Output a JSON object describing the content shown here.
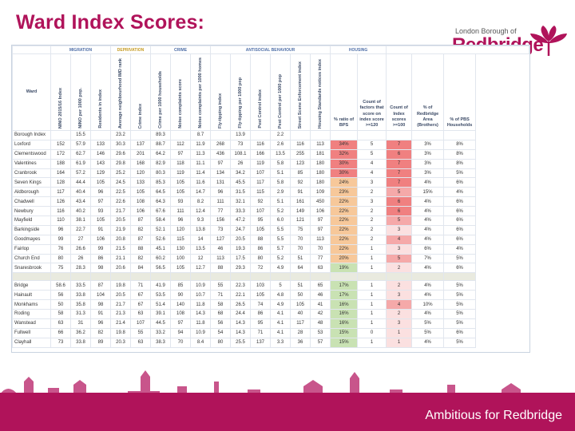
{
  "page": {
    "title": "Ward Index Scores:",
    "tagline": "Ambitious for Redbridge"
  },
  "logo": {
    "line1": "London Borough of",
    "line2": "Redbridge"
  },
  "table": {
    "groups": [
      {
        "label": "MIGRATION",
        "span": 3,
        "color": "#4f6fa8"
      },
      {
        "label": "DEPRIVATION",
        "span": 2,
        "color": "#c59a21"
      },
      {
        "label": "CRIME",
        "span": 3,
        "color": "#4f6fa8"
      },
      {
        "label": "ANTISOCIAL BEHAVIOUR",
        "span": 6,
        "color": "#4f6fa8"
      },
      {
        "label": "HOUSING",
        "span": 2,
        "color": "#4f6fa8"
      },
      {
        "label": "",
        "span": 5,
        "color": "#4f6fa8"
      }
    ],
    "columns": [
      "Ward",
      "NINO 2015/16 Index",
      "NINO per 1000 pop.",
      "Residents in index",
      "Average neighbourhood IMD rank",
      "Crime index",
      "Crime per 1000 households",
      "Noise complaints score",
      "Noise complaints per 1000 homes",
      "Fly-tipping index",
      "Fly-tipping per 1000 pop",
      "Pest Control index",
      "Pest Control per 1000 pop",
      "Street Scene Enforcement index",
      "Housing Standards notices index",
      "% ratio of BPS",
      "Count of factors that score on index score >=120",
      "Count of Index scores >=100",
      "% of Redbridge Area (Brothers)",
      "% of PBS Households"
    ],
    "rows": [
      {
        "ward": "Borough Index",
        "v": [
          "",
          "15.5",
          "",
          "23.2",
          "",
          "89.3",
          "",
          "8.7",
          "",
          "13.9",
          "",
          "2.2",
          "",
          "",
          "",
          "",
          "",
          "",
          ""
        ]
      },
      {
        "ward": "Loxford",
        "v": [
          "152",
          "57.9",
          "133",
          "30.3",
          "137",
          "88.7",
          "112",
          "11.9",
          "268",
          "73",
          "116",
          "2.6",
          "116",
          "113",
          "34%",
          "5",
          "7",
          "3%",
          "8%"
        ]
      },
      {
        "ward": "Clementswood",
        "v": [
          "172",
          "62.7",
          "146",
          "29.6",
          "201",
          "64.2",
          "97",
          "11.3",
          "436",
          "108.1",
          "166",
          "13.5",
          "255",
          "181",
          "32%",
          "5",
          "6",
          "3%",
          "8%"
        ]
      },
      {
        "ward": "Valentines",
        "v": [
          "188",
          "61.9",
          "143",
          "29.8",
          "168",
          "82.9",
          "118",
          "11.1",
          "97",
          "26",
          "119",
          "5.8",
          "123",
          "180",
          "30%",
          "4",
          "7",
          "3%",
          "8%"
        ]
      },
      {
        "ward": "Cranbrook",
        "v": [
          "164",
          "57.2",
          "129",
          "25.2",
          "120",
          "80.3",
          "119",
          "11.4",
          "134",
          "34.2",
          "107",
          "5.1",
          "85",
          "180",
          "30%",
          "4",
          "7",
          "3%",
          "5%"
        ]
      },
      {
        "ward": "Seven Kings",
        "v": [
          "128",
          "44.4",
          "105",
          "24.5",
          "133",
          "85.3",
          "105",
          "11.6",
          "131",
          "45.5",
          "117",
          "5.8",
          "92",
          "180",
          "24%",
          "3",
          "7",
          "4%",
          "6%"
        ]
      },
      {
        "ward": "Aldborough",
        "v": [
          "117",
          "40.4",
          "96",
          "22.5",
          "105",
          "64.5",
          "105",
          "14.7",
          "96",
          "31.5",
          "115",
          "2.9",
          "91",
          "109",
          "23%",
          "2",
          "5",
          "15%",
          "4%"
        ]
      },
      {
        "ward": "Chadwell",
        "v": [
          "126",
          "43.4",
          "97",
          "22.6",
          "108",
          "64.3",
          "93",
          "8.2",
          "111",
          "32.1",
          "92",
          "5.1",
          "161",
          "450",
          "22%",
          "3",
          "6",
          "4%",
          "6%"
        ]
      },
      {
        "ward": "Newbury",
        "v": [
          "116",
          "40.2",
          "93",
          "21.7",
          "106",
          "67.6",
          "111",
          "12.4",
          "77",
          "33.3",
          "107",
          "5.2",
          "149",
          "106",
          "22%",
          "2",
          "6",
          "4%",
          "6%"
        ]
      },
      {
        "ward": "Mayfield",
        "v": [
          "110",
          "38.1",
          "105",
          "20.5",
          "87",
          "58.4",
          "96",
          "9.3",
          "156",
          "47.2",
          "95",
          "6.0",
          "121",
          "97",
          "22%",
          "2",
          "5",
          "4%",
          "6%"
        ]
      },
      {
        "ward": "Barkingside",
        "v": [
          "96",
          "22.7",
          "91",
          "21.9",
          "82",
          "52.1",
          "120",
          "13.8",
          "73",
          "24.7",
          "105",
          "5.5",
          "75",
          "97",
          "22%",
          "2",
          "3",
          "4%",
          "6%"
        ]
      },
      {
        "ward": "Goodmayes",
        "v": [
          "99",
          "27",
          "106",
          "20.8",
          "87",
          "52.6",
          "115",
          "14",
          "127",
          "20.5",
          "88",
          "5.5",
          "70",
          "113",
          "22%",
          "2",
          "4",
          "4%",
          "6%"
        ]
      },
      {
        "ward": "Fairlop",
        "v": [
          "76",
          "26.6",
          "99",
          "21.5",
          "88",
          "45.1",
          "130",
          "13.5",
          "46",
          "19.3",
          "86",
          "5.7",
          "70",
          "70",
          "22%",
          "1",
          "3",
          "6%",
          "4%"
        ]
      },
      {
        "ward": "Church End",
        "v": [
          "80",
          "26",
          "86",
          "21.1",
          "82",
          "60.2",
          "100",
          "12",
          "113",
          "17.5",
          "80",
          "5.2",
          "51",
          "77",
          "20%",
          "1",
          "5",
          "7%",
          "5%"
        ]
      },
      {
        "ward": "Snaresbrook",
        "v": [
          "75",
          "28.3",
          "98",
          "20.6",
          "84",
          "56.5",
          "105",
          "12.7",
          "88",
          "29.3",
          "72",
          "4.9",
          "64",
          "63",
          "19%",
          "1",
          "2",
          "4%",
          "6%"
        ]
      },
      {
        "ward": "",
        "sep": true,
        "v": [
          "",
          "",
          "",
          "",
          "",
          "",
          "",
          "",
          "",
          "",
          "",
          "",
          "",
          "",
          "",
          "",
          "",
          "",
          ""
        ]
      },
      {
        "ward": "Bridge",
        "v": [
          "58.6",
          "33.5",
          "87",
          "19.8",
          "71",
          "41.9",
          "85",
          "10.9",
          "55",
          "22.3",
          "103",
          "5",
          "51",
          "65",
          "17%",
          "1",
          "2",
          "4%",
          "5%"
        ]
      },
      {
        "ward": "Hainault",
        "v": [
          "56",
          "33.8",
          "104",
          "20.5",
          "67",
          "53.5",
          "90",
          "10.7",
          "71",
          "22.1",
          "105",
          "4.8",
          "50",
          "46",
          "17%",
          "1",
          "3",
          "4%",
          "5%"
        ]
      },
      {
        "ward": "Monkhams",
        "v": [
          "50",
          "35.8",
          "98",
          "21.7",
          "67",
          "51.4",
          "140",
          "11.8",
          "58",
          "26.5",
          "74",
          "4.9",
          "105",
          "41",
          "16%",
          "1",
          "4",
          "10%",
          "5%"
        ]
      },
      {
        "ward": "Roding",
        "v": [
          "58",
          "31.3",
          "91",
          "21.3",
          "63",
          "39.1",
          "108",
          "14.3",
          "68",
          "24.4",
          "86",
          "4.1",
          "40",
          "42",
          "16%",
          "1",
          "2",
          "4%",
          "5%"
        ]
      },
      {
        "ward": "Wanstead",
        "v": [
          "63",
          "31",
          "96",
          "21.4",
          "107",
          "44.5",
          "97",
          "11.8",
          "56",
          "14.3",
          "95",
          "4.1",
          "117",
          "48",
          "16%",
          "1",
          "3",
          "5%",
          "5%"
        ]
      },
      {
        "ward": "Fullwell",
        "v": [
          "66",
          "36.2",
          "82",
          "19.8",
          "55",
          "33.2",
          "94",
          "10.9",
          "54",
          "14.3",
          "71",
          "4.1",
          "28",
          "53",
          "15%",
          "0",
          "1",
          "5%",
          "6%"
        ]
      },
      {
        "ward": "Clayhall",
        "v": [
          "73",
          "33.8",
          "89",
          "20.3",
          "63",
          "38.3",
          "70",
          "8.4",
          "80",
          "25.5",
          "137",
          "3.3",
          "36",
          "57",
          "15%",
          "1",
          "1",
          "4%",
          "5%"
        ]
      }
    ]
  },
  "colors": {
    "brand": "#b0135a",
    "high": "#f08080",
    "mid": "#f7c89a",
    "low": "#c9e2b3",
    "grid": "#e1e6ee"
  }
}
